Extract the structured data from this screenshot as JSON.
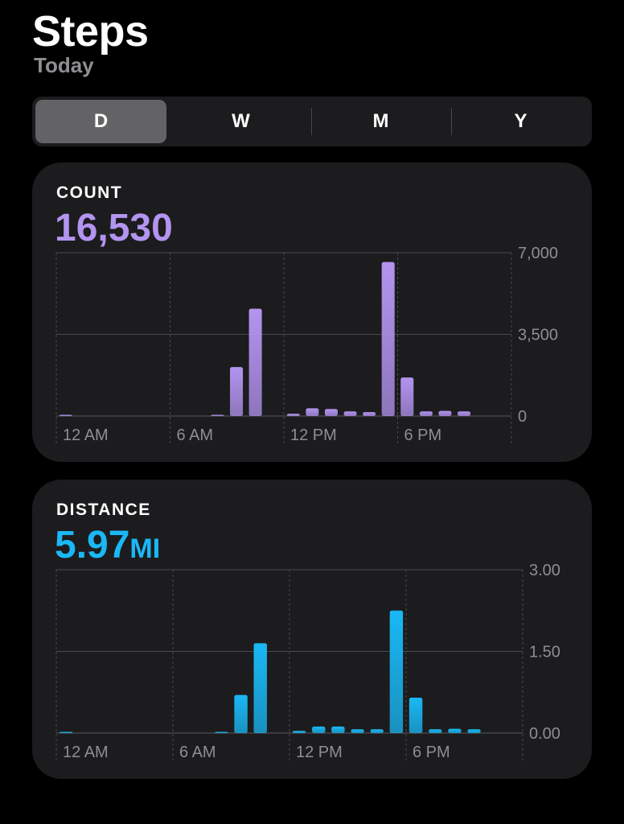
{
  "header": {
    "title": "Steps",
    "subtitle": "Today"
  },
  "segments": [
    {
      "label": "D",
      "active": true
    },
    {
      "label": "W",
      "active": false
    },
    {
      "label": "M",
      "active": false
    },
    {
      "label": "Y",
      "active": false
    }
  ],
  "colors": {
    "steps": "#b394f0",
    "distance": "#1ab8f5",
    "grid": "#4a4a4e",
    "text_secondary": "#8e8e93"
  },
  "count_card": {
    "label": "COUNT",
    "value": "16,530",
    "chart_data": {
      "type": "bar",
      "categories": [
        "0",
        "1",
        "2",
        "3",
        "4",
        "5",
        "6",
        "7",
        "8",
        "9",
        "10",
        "11",
        "12",
        "13",
        "14",
        "15",
        "16",
        "17",
        "18",
        "19",
        "20",
        "21",
        "22",
        "23"
      ],
      "values": [
        15,
        0,
        0,
        0,
        0,
        0,
        0,
        0,
        30,
        2100,
        4600,
        0,
        100,
        330,
        300,
        200,
        170,
        6600,
        1650,
        200,
        220,
        200,
        0,
        0
      ],
      "ylim": [
        0,
        7000
      ],
      "yticks": [
        "7,000",
        "3,500",
        "0"
      ],
      "xticks": [
        "12 AM",
        "6 AM",
        "12 PM",
        "6 PM"
      ],
      "grid": true
    }
  },
  "distance_card": {
    "label": "DISTANCE",
    "value": "5.97",
    "unit": "MI",
    "chart_data": {
      "type": "bar",
      "categories": [
        "0",
        "1",
        "2",
        "3",
        "4",
        "5",
        "6",
        "7",
        "8",
        "9",
        "10",
        "11",
        "12",
        "13",
        "14",
        "15",
        "16",
        "17",
        "18",
        "19",
        "20",
        "21",
        "22",
        "23"
      ],
      "values": [
        0.01,
        0,
        0,
        0,
        0,
        0,
        0,
        0,
        0.01,
        0.7,
        1.65,
        0,
        0.04,
        0.12,
        0.12,
        0.07,
        0.07,
        2.25,
        0.65,
        0.07,
        0.08,
        0.07,
        0,
        0
      ],
      "ylim": [
        0,
        3
      ],
      "yticks": [
        "3.00",
        "1.50",
        "0.00"
      ],
      "xticks": [
        "12 AM",
        "6 AM",
        "12 PM",
        "6 PM"
      ],
      "grid": true
    }
  }
}
